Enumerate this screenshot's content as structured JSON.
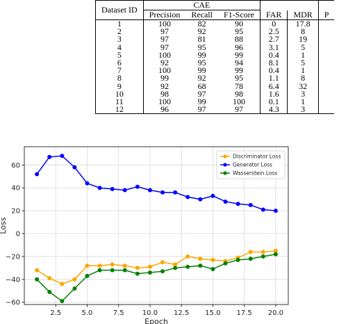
{
  "table": {
    "header_dataset": "Dataset ID",
    "group": "CAE",
    "cols": [
      "Precision",
      "Recall",
      "F1-Score",
      "FAR",
      "MDR"
    ],
    "next_group_partial": "P",
    "rows": [
      [
        "1",
        "100",
        "82",
        "90",
        "0",
        "17.8"
      ],
      [
        "2",
        "97",
        "92",
        "95",
        "2.5",
        "8"
      ],
      [
        "3",
        "97",
        "81",
        "88",
        "2.7",
        "19"
      ],
      [
        "4",
        "97",
        "95",
        "96",
        "3.1",
        "5"
      ],
      [
        "5",
        "100",
        "99",
        "99",
        "0.4",
        "1"
      ],
      [
        "6",
        "92",
        "95",
        "94",
        "8.1",
        "5"
      ],
      [
        "7",
        "100",
        "99",
        "99",
        "0.4",
        "1"
      ],
      [
        "8",
        "99",
        "92",
        "95",
        "1.1",
        "8"
      ],
      [
        "9",
        "92",
        "68",
        "78",
        "6.4",
        "32"
      ],
      [
        "10",
        "98",
        "97",
        "98",
        "1.6",
        "3"
      ],
      [
        "11",
        "100",
        "99",
        "100",
        "0.1",
        "1"
      ],
      [
        "12",
        "96",
        "97",
        "97",
        "4.3",
        "3"
      ]
    ]
  },
  "chart_data": {
    "type": "line",
    "title": "",
    "xlabel": "Epoch",
    "ylabel": "Loss",
    "xlim": [
      0,
      21
    ],
    "ylim": [
      -62,
      76
    ],
    "xticks": [
      2.5,
      5.0,
      7.5,
      10.0,
      12.5,
      15.0,
      17.5,
      20.0
    ],
    "xtick_labels": [
      "2.5",
      "5.0",
      "7.5",
      "10.0",
      "12.5",
      "15.0",
      "17.5",
      "20.0"
    ],
    "yticks": [
      -60,
      -40,
      -20,
      0,
      20,
      40,
      60
    ],
    "ytick_labels": [
      "−60",
      "−40",
      "−20",
      "0",
      "20",
      "40",
      "60"
    ],
    "grid": true,
    "legend": "top-right",
    "x": [
      1,
      2,
      3,
      4,
      5,
      6,
      7,
      8,
      9,
      10,
      11,
      12,
      13,
      14,
      15,
      16,
      17,
      18,
      19,
      20
    ],
    "series": [
      {
        "name": "Discriminator Loss",
        "color": "#ffa500",
        "values": [
          -32,
          -39,
          -44,
          -40,
          -28,
          -28,
          -27,
          -28,
          -30,
          -29,
          -25,
          -27,
          -20,
          -22,
          -23,
          -24,
          -21,
          -16,
          -16,
          -15
        ]
      },
      {
        "name": "Generator Loss",
        "color": "#0000ff",
        "values": [
          52,
          67,
          68,
          58,
          44,
          40,
          39,
          38,
          41,
          38,
          36,
          36,
          32,
          30,
          33,
          28,
          26,
          25,
          21,
          20
        ]
      },
      {
        "name": "Wasserstein Loss",
        "color": "#008000",
        "values": [
          -40,
          -51,
          -59,
          -48,
          -37,
          -32,
          -32,
          -32,
          -35,
          -34,
          -33,
          -30,
          -29,
          -28,
          -31,
          -26,
          -23,
          -22,
          -20,
          -18
        ]
      }
    ]
  }
}
